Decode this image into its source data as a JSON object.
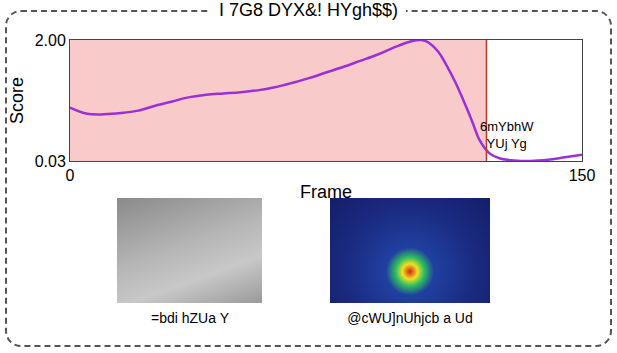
{
  "chart_data": {
    "type": "line",
    "title": "I 7G8 DYX&! HYgh$$)",
    "x_label": "Frame",
    "y_label": "Score",
    "x": [
      0,
      5,
      10,
      15,
      20,
      25,
      30,
      35,
      40,
      45,
      50,
      55,
      60,
      65,
      70,
      75,
      80,
      85,
      90,
      95,
      100,
      103,
      105,
      108,
      110,
      113,
      115,
      118,
      120,
      123,
      126,
      130,
      135,
      140,
      145,
      150
    ],
    "values": [
      0.9,
      0.8,
      0.79,
      0.81,
      0.85,
      0.93,
      1.0,
      1.07,
      1.11,
      1.13,
      1.15,
      1.18,
      1.23,
      1.3,
      1.38,
      1.47,
      1.56,
      1.66,
      1.76,
      1.88,
      1.98,
      2.0,
      1.96,
      1.8,
      1.62,
      1.3,
      1.05,
      0.65,
      0.37,
      0.15,
      0.07,
      0.04,
      0.03,
      0.05,
      0.09,
      0.13
    ],
    "color": "#9b30d9",
    "xlim": [
      0,
      150
    ],
    "xticks": [
      0,
      150
    ],
    "ylim": [
      0.03,
      2
    ],
    "yticks": [
      {
        "value": 2,
        "label": "2.00"
      },
      0.03
    ],
    "grid": false,
    "highlight": {
      "x0": 0,
      "x1": 122,
      "color": "#f9caca",
      "line_color": "#c0392b"
    },
    "annotations": [
      {
        "text": [
          "6mYbhW",
          "YUj Yg"
        ],
        "x": 128,
        "y": 0.45
      }
    ]
  },
  "panels": [
    {
      "caption": "=bdi hZUa Y"
    },
    {
      "caption": "@cWU]nUhjcb a Ud"
    }
  ]
}
